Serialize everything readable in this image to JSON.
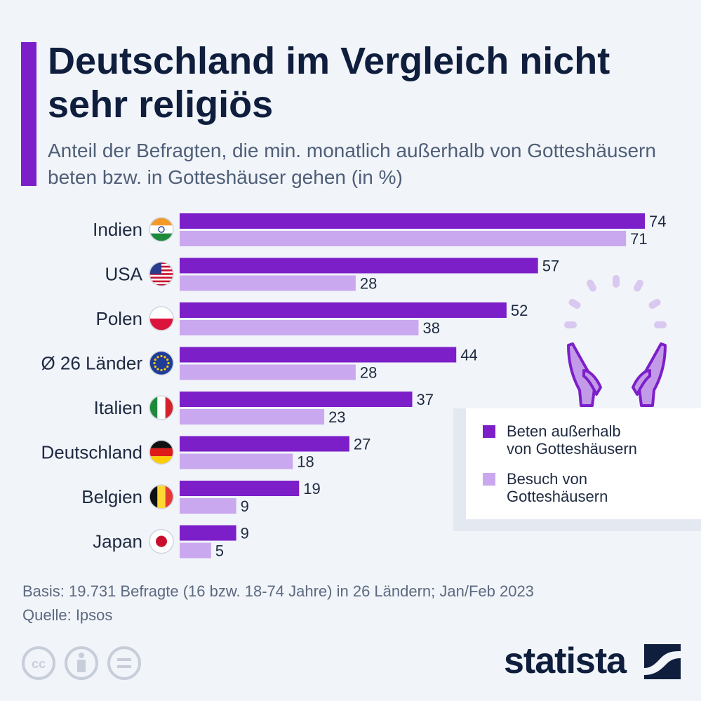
{
  "title": "Deutschland im Vergleich nicht sehr religiös",
  "subtitle": "Anteil der Befragten, die min. monatlich außerhalb von Gotteshäusern beten bzw. in Gotteshäuser gehen (in %)",
  "chart_data": {
    "type": "bar",
    "orientation": "horizontal",
    "categories": [
      "Indien",
      "USA",
      "Polen",
      "Ø 26 Länder",
      "Italien",
      "Deutschland",
      "Belgien",
      "Japan"
    ],
    "series": [
      {
        "name": "Beten außerhalb von Gotteshäusern",
        "color": "#7c1fc9",
        "values": [
          74,
          57,
          52,
          44,
          37,
          27,
          19,
          9
        ]
      },
      {
        "name": "Besuch von Gotteshäusern",
        "color": "#caa8ef",
        "values": [
          71,
          28,
          38,
          28,
          23,
          18,
          9,
          5
        ]
      }
    ],
    "xlim": [
      0,
      74
    ],
    "grid": false,
    "legend_position": "right"
  },
  "legend": {
    "item1": "Beten außerhalb\nvon Gotteshäusern",
    "item2": "Besuch von\nGotteshäusern"
  },
  "footnote": {
    "basis": "Basis: 19.731 Befragte (16 bzw. 18-74 Jahre) in 26 Ländern; Jan/Feb 2023",
    "source": "Quelle: Ipsos"
  },
  "logo": "statista",
  "icons": {
    "flags": [
      "india-flag-icon",
      "usa-flag-icon",
      "poland-flag-icon",
      "eu-flag-icon",
      "italy-flag-icon",
      "germany-flag-icon",
      "belgium-flag-icon",
      "japan-flag-icon"
    ],
    "license": [
      "cc-icon",
      "by-icon",
      "nd-icon"
    ],
    "decoration": "praying-hands-icon"
  }
}
